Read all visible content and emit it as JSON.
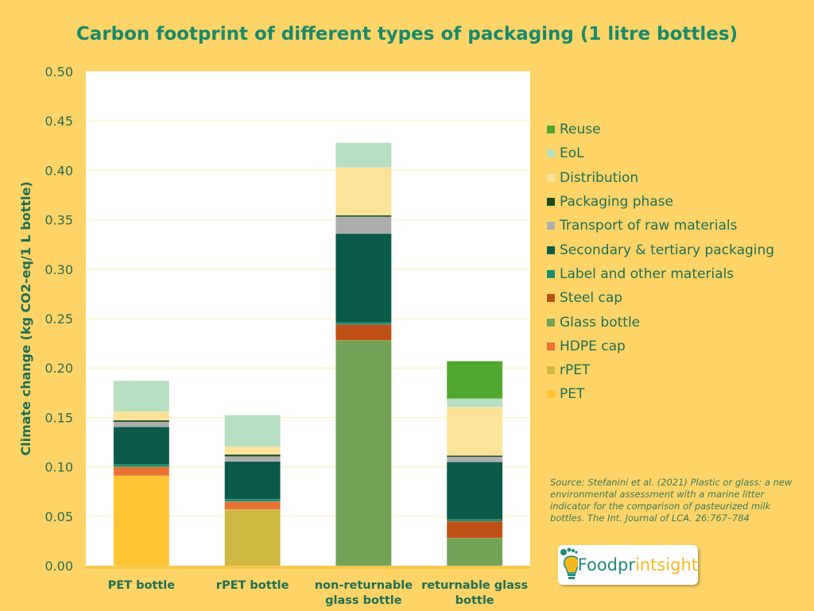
{
  "chart_data": {
    "type": "bar",
    "stacked": true,
    "title": "Carbon footprint of different types of packaging (1 litre bottles)",
    "ylabel": "Climate change (kg CO2-eq/1 L bottle)",
    "xlabel": "",
    "ylim": [
      0,
      0.5
    ],
    "yticks": [
      "0.00",
      "0.05",
      "0.10",
      "0.15",
      "0.20",
      "0.25",
      "0.30",
      "0.35",
      "0.40",
      "0.45",
      "0.50"
    ],
    "grid": true,
    "legend_placement": "right",
    "categories": [
      [
        "PET bottle"
      ],
      [
        "rPET bottle"
      ],
      [
        "non-returnable",
        "glass bottle"
      ],
      [
        "returnable glass",
        "bottle"
      ]
    ],
    "series": [
      {
        "name": "PET",
        "color": "#FFC433",
        "values": [
          0.091,
          0,
          0,
          0
        ]
      },
      {
        "name": "rPET",
        "color": "#CFB942",
        "values": [
          0,
          0.057,
          0,
          0
        ]
      },
      {
        "name": "HDPE cap",
        "color": "#E87232",
        "values": [
          0.009,
          0.008,
          0,
          0
        ]
      },
      {
        "name": "Glass bottle",
        "color": "#72A357",
        "values": [
          0,
          0,
          0.228,
          0.028
        ]
      },
      {
        "name": "Steel cap",
        "color": "#BE5015",
        "values": [
          0,
          0,
          0.016,
          0.017
        ]
      },
      {
        "name": "Label and other materials",
        "color": "#168C70",
        "values": [
          0.0025,
          0.0025,
          0.002,
          0.002
        ]
      },
      {
        "name": "Secondary & tertiary packaging",
        "color": "#0B5A4A",
        "values": [
          0.038,
          0.038,
          0.09,
          0.058
        ]
      },
      {
        "name": "Transport of raw materials",
        "color": "#ADADAD",
        "values": [
          0.005,
          0.005,
          0.017,
          0.005
        ]
      },
      {
        "name": "Packaging phase",
        "color": "#1B4A1B",
        "values": [
          0.0016,
          0.002,
          0.0015,
          0.0015
        ]
      },
      {
        "name": "Distribution",
        "color": "#FDE29A",
        "values": [
          0.009,
          0.008,
          0.0485,
          0.049
        ]
      },
      {
        "name": "EoL",
        "color": "#B7DFC1",
        "values": [
          0.031,
          0.032,
          0.025,
          0.0085
        ]
      },
      {
        "name": "Reuse",
        "color": "#52A72F",
        "values": [
          0,
          0,
          0,
          0.038
        ]
      }
    ]
  },
  "source": "Source: Stefanini et al. (2021) Plastic or glass: a new environmental assessment with a marine litter indicator for the comparison of pasteurized milk bottles. The Int. Journal of LCA. 26:767–784",
  "logo": {
    "part1": "Foodpr",
    "part2": "intsight"
  },
  "colors": {
    "background": "#FFD466",
    "title": "#168A6E",
    "text": "#1E6E55"
  }
}
